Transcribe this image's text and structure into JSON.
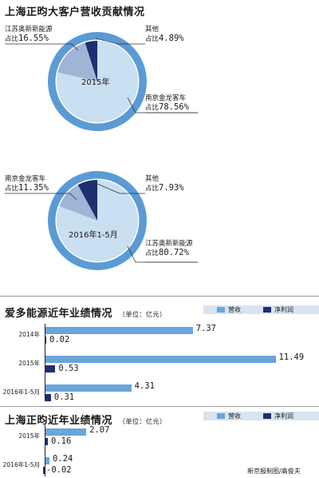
{
  "chart_data": [
    {
      "type": "pie",
      "title": "上海正昀大客户营收贡献情况",
      "center_label": "2015年",
      "slices": [
        {
          "name": "南京金龙客车",
          "value": 78.56,
          "display": "78.56%",
          "share_label": "占比",
          "color": "#c9dff2"
        },
        {
          "name": "江苏奥新新能源",
          "value": 16.55,
          "display": "16.55%",
          "share_label": "占比",
          "color": "#9fb5d6"
        },
        {
          "name": "其他",
          "value": 4.89,
          "display": "4.89%",
          "share_label": "占比",
          "color": "#1c2f6e"
        }
      ]
    },
    {
      "type": "pie",
      "center_label": "2016年1-5月",
      "slices": [
        {
          "name": "江苏奥新新能源",
          "value": 80.72,
          "display": "80.72%",
          "share_label": "占比",
          "color": "#c9dff2"
        },
        {
          "name": "南京金龙客车",
          "value": 11.35,
          "display": "11.35%",
          "share_label": "占比",
          "color": "#9fb5d6"
        },
        {
          "name": "其他",
          "value": 7.93,
          "display": "7.93%",
          "share_label": "占比",
          "color": "#1c2f6e"
        }
      ]
    },
    {
      "type": "bar",
      "title": "爱多能源近年业绩情况",
      "unit": "（单位：亿元）",
      "categories": [
        "2014年",
        "2015年",
        "2016年1-5月"
      ],
      "series": [
        {
          "name": "营收",
          "values": [
            7.37,
            11.49,
            4.31
          ],
          "labels": [
            "7.37",
            "11.49",
            "4.31"
          ],
          "color": "#6aa5db"
        },
        {
          "name": "净利润",
          "values": [
            0.02,
            0.53,
            0.31
          ],
          "labels": [
            "0.02",
            "0.53",
            "0.31"
          ],
          "color": "#1c2f6e"
        }
      ]
    },
    {
      "type": "bar",
      "title": "上海正昀近年业绩情况",
      "unit": "（单位：亿元）",
      "categories": [
        "2015年",
        "2016年1-5月"
      ],
      "series": [
        {
          "name": "营收",
          "values": [
            2.07,
            0.24
          ],
          "labels": [
            "2.07",
            "0.24"
          ],
          "color": "#6aa5db"
        },
        {
          "name": "净利润",
          "values": [
            0.16,
            -0.02
          ],
          "labels": [
            "0.16",
            "-0.02"
          ],
          "color": "#1c2f6e"
        }
      ]
    }
  ],
  "credit": "新京报制图/高俊夫",
  "colors": {
    "ring": "#5b9bd5",
    "divider": "#9a9a9a",
    "legend_bg": "#d9e4f0"
  }
}
